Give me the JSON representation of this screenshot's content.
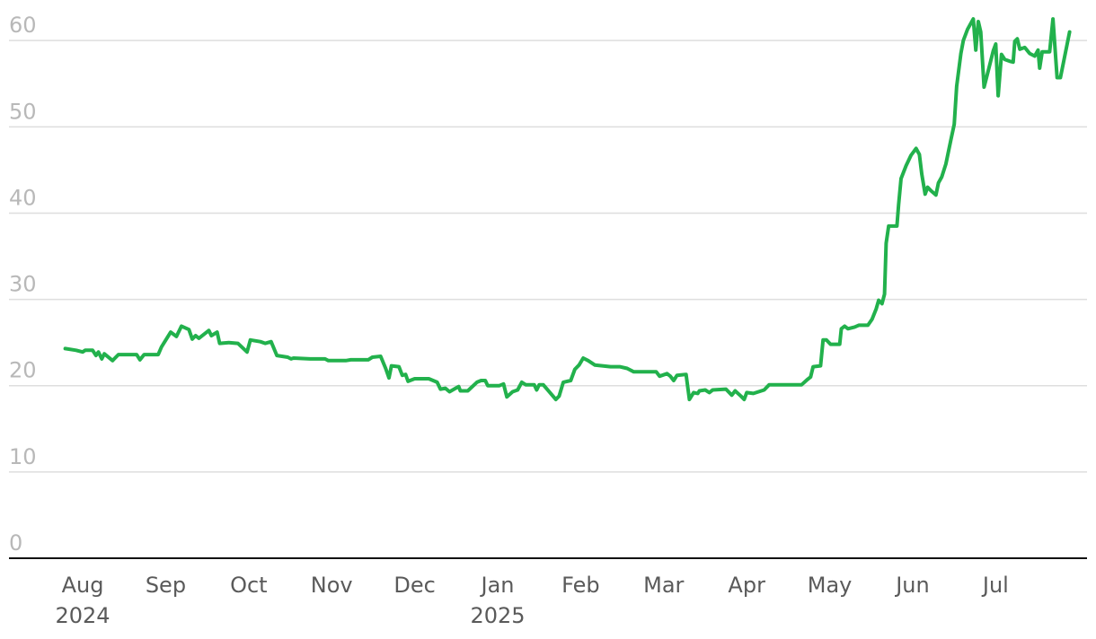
{
  "chart_data": {
    "type": "line",
    "x": [
      -0.21,
      -0.08,
      0,
      0.03,
      0.12,
      0.16,
      0.19,
      0.23,
      0.26,
      0.36,
      0.43,
      0.52,
      0.65,
      0.69,
      0.74,
      0.91,
      0.95,
      1.06,
      1.13,
      1.19,
      1.28,
      1.32,
      1.36,
      1.4,
      1.52,
      1.55,
      1.62,
      1.65,
      1.76,
      1.87,
      1.98,
      2.02,
      2.14,
      2.2,
      2.27,
      2.34,
      2.47,
      2.51,
      2.54,
      2.74,
      2.92,
      2.96,
      3.17,
      3.23,
      3.44,
      3.49,
      3.59,
      3.65,
      3.69,
      3.72,
      3.81,
      3.85,
      3.89,
      3.92,
      4.0,
      4.17,
      4.27,
      4.31,
      4.37,
      4.42,
      4.53,
      4.55,
      4.64,
      4.75,
      4.8,
      4.85,
      4.88,
      5.02,
      5.07,
      5.11,
      5.18,
      5.24,
      5.29,
      5.34,
      5.44,
      5.47,
      5.5,
      5.55,
      5.63,
      5.7,
      5.74,
      5.79,
      5.88,
      5.93,
      5.98,
      6.03,
      6.09,
      6.17,
      6.26,
      6.36,
      6.47,
      6.56,
      6.64,
      6.8,
      6.91,
      6.95,
      7.04,
      7.08,
      7.12,
      7.16,
      7.27,
      7.31,
      7.36,
      7.41,
      7.43,
      7.5,
      7.55,
      7.59,
      7.75,
      7.82,
      7.86,
      7.93,
      7.97,
      8.0,
      8.08,
      8.21,
      8.27,
      8.42,
      8.66,
      8.73,
      8.77,
      8.8,
      8.89,
      8.92,
      8.96,
      9.01,
      9.12,
      9.14,
      9.18,
      9.22,
      9.3,
      9.35,
      9.46,
      9.51,
      9.56,
      9.59,
      9.63,
      9.66,
      9.68,
      9.71,
      9.81,
      9.83,
      9.86,
      9.92,
      9.98,
      10.04,
      10.08,
      10.11,
      10.15,
      10.18,
      10.22,
      10.28,
      10.31,
      10.35,
      10.4,
      10.46,
      10.5,
      10.53,
      10.58,
      10.61,
      10.66,
      10.73,
      10.76,
      10.79,
      10.82,
      10.86,
      10.91,
      10.97,
      11.0,
      11.03,
      11.07,
      11.11,
      11.17,
      11.21,
      11.23,
      11.26,
      11.29,
      11.35,
      11.41,
      11.47,
      11.51,
      11.53,
      11.56,
      11.65,
      11.69,
      11.74,
      11.78,
      11.89
    ],
    "series": [
      {
        "color": "#22b14c",
        "values": [
          24.3,
          24.1,
          23.9,
          24.1,
          24.1,
          23.5,
          23.9,
          23.1,
          23.7,
          22.9,
          23.6,
          23.6,
          23.6,
          23.0,
          23.6,
          23.6,
          24.5,
          26.2,
          25.7,
          26.9,
          26.5,
          25.4,
          25.8,
          25.5,
          26.4,
          25.8,
          26.2,
          24.9,
          25.0,
          24.9,
          23.9,
          25.3,
          25.1,
          24.9,
          25.1,
          23.5,
          23.3,
          23.1,
          23.2,
          23.1,
          23.1,
          22.9,
          22.9,
          23.0,
          23.0,
          23.3,
          23.4,
          22.0,
          20.9,
          22.3,
          22.2,
          21.2,
          21.3,
          20.5,
          20.8,
          20.8,
          20.4,
          19.6,
          19.7,
          19.3,
          19.9,
          19.4,
          19.4,
          20.4,
          20.6,
          20.6,
          20.0,
          20.0,
          20.2,
          18.7,
          19.3,
          19.5,
          20.4,
          20.1,
          20.1,
          19.5,
          20.1,
          20.1,
          19.2,
          18.4,
          18.8,
          20.4,
          20.6,
          21.9,
          22.4,
          23.2,
          22.9,
          22.4,
          22.3,
          22.2,
          22.2,
          22.0,
          21.6,
          21.6,
          21.6,
          21.1,
          21.4,
          21.1,
          20.6,
          21.2,
          21.3,
          18.4,
          19.2,
          19.1,
          19.4,
          19.5,
          19.2,
          19.5,
          19.6,
          18.9,
          19.4,
          18.8,
          18.4,
          19.2,
          19.1,
          19.5,
          20.1,
          20.1,
          20.1,
          20.7,
          21.0,
          22.2,
          22.3,
          25.3,
          25.3,
          24.8,
          24.8,
          26.6,
          26.9,
          26.6,
          26.8,
          27.0,
          27.0,
          27.7,
          28.9,
          29.9,
          29.5,
          30.6,
          36.5,
          38.5,
          38.5,
          41.0,
          44.0,
          45.5,
          46.7,
          47.5,
          46.8,
          44.5,
          42.2,
          43.0,
          42.6,
          42.1,
          43.5,
          44.2,
          45.7,
          48.5,
          50.3,
          54.7,
          58.5,
          60.0,
          61.3,
          62.5,
          58.9,
          62.2,
          61.0,
          54.6,
          56.5,
          58.8,
          59.6,
          53.6,
          58.4,
          57.8,
          57.6,
          57.5,
          59.9,
          60.2,
          59.0,
          59.2,
          58.5,
          58.2,
          58.9,
          56.8,
          58.7,
          58.7,
          62.5,
          55.7,
          55.7,
          61.0
        ]
      }
    ],
    "xlim": [
      -0.888,
      12.1
    ],
    "xticks": [
      {
        "value": 0,
        "label": "Aug 2024"
      },
      {
        "value": 1,
        "label": "Sep"
      },
      {
        "value": 2,
        "label": "Oct"
      },
      {
        "value": 3,
        "label": "Nov"
      },
      {
        "value": 4,
        "label": "Dec"
      },
      {
        "value": 5,
        "label": "Jan 2025"
      },
      {
        "value": 6,
        "label": "Feb"
      },
      {
        "value": 7,
        "label": "Mar"
      },
      {
        "value": 8,
        "label": "Apr"
      },
      {
        "value": 9,
        "label": "May"
      },
      {
        "value": 10,
        "label": "Jun"
      },
      {
        "value": 11,
        "label": "Jul"
      }
    ],
    "ylim": [
      0,
      64.7
    ],
    "yticks": [
      0,
      10,
      20,
      30,
      40,
      50,
      60
    ],
    "grid": true
  }
}
